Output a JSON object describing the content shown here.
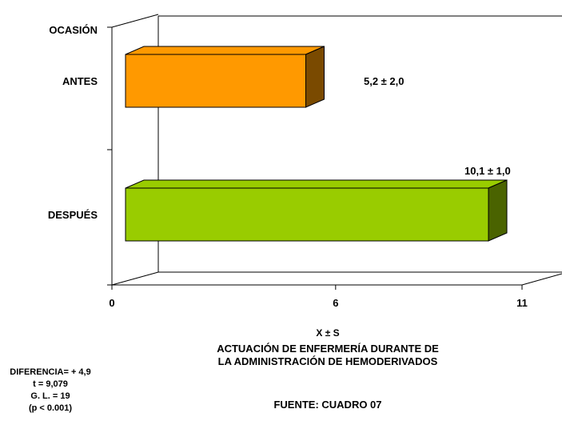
{
  "chart_data": {
    "type": "bar",
    "orientation": "horizontal",
    "axis_label_y": "OCASIÓN",
    "categories": [
      "ANTES",
      "DESPUÉS"
    ],
    "values": [
      5.2,
      10.1
    ],
    "data_labels": [
      "5,2 ± 2,0",
      "10,1 ± 1,0"
    ],
    "xticks": [
      0,
      6,
      11
    ],
    "xlim": [
      0,
      11
    ],
    "xlabel": "X ± S",
    "colors": [
      "#FF9900",
      "#99CC00"
    ],
    "side_colors": [
      "#7A4A00",
      "#4A6300"
    ],
    "grid": false,
    "legend": "none"
  },
  "title_lines": [
    "ACTUACIÓN DE ENFERMERÍA DURANTE DE",
    "LA ADMINISTRACIÓN DE HEMODERIVADOS"
  ],
  "stats": {
    "diferencia": "DIFERENCIA= + 4,9",
    "t": "t =  9,079",
    "gl": "G. L. = 19",
    "p": "(p < 0.001)"
  },
  "source": "FUENTE: CUADRO 07"
}
